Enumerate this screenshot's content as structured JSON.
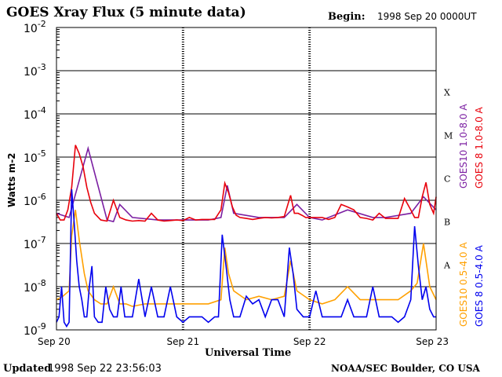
{
  "chart_data": {
    "type": "line",
    "title": "GOES Xray Flux (5 minute data)",
    "begin_label": "Begin:",
    "begin_value": "1998 Sep 20 0000UT",
    "ylabel": "Watts m-2",
    "xlabel": "Universal Time",
    "y_scale": "log",
    "ylim": [
      1e-09,
      0.01
    ],
    "y_ticks": [
      {
        "base": "10",
        "exp": "-2"
      },
      {
        "base": "10",
        "exp": "-3"
      },
      {
        "base": "10",
        "exp": "-4"
      },
      {
        "base": "10",
        "exp": "-5"
      },
      {
        "base": "10",
        "exp": "-6"
      },
      {
        "base": "10",
        "exp": "-7"
      },
      {
        "base": "10",
        "exp": "-8"
      },
      {
        "base": "10",
        "exp": "-9"
      }
    ],
    "x_ticks": [
      "Sep 20",
      "Sep 21",
      "Sep 22",
      "Sep 23"
    ],
    "xlim_days": [
      0,
      3
    ],
    "flare_classes": [
      {
        "label": "X",
        "level": 0.0001
      },
      {
        "label": "M",
        "level": 1e-05
      },
      {
        "label": "C",
        "level": 1e-06
      },
      {
        "label": "B",
        "level": 1e-07
      },
      {
        "label": "A",
        "level": 1e-08
      }
    ],
    "grid": true,
    "legend_position": "right",
    "series": [
      {
        "name": "GOES10 1.0-8.0 A",
        "color": "#7b1fa2",
        "x_days": [
          0.0,
          0.1,
          0.25,
          0.4,
          0.45,
          0.5,
          0.6,
          0.8,
          1.0,
          1.2,
          1.3,
          1.35,
          1.4,
          1.6,
          1.8,
          1.9,
          2.0,
          2.1,
          2.3,
          2.5,
          2.6,
          2.8,
          2.9,
          3.0
        ],
        "values": [
          5e-07,
          4e-07,
          1.6e-05,
          3.5e-07,
          3.2e-07,
          8e-07,
          4e-07,
          3.5e-07,
          3.5e-07,
          3.5e-07,
          4e-07,
          2.2e-06,
          5e-07,
          4e-07,
          4e-07,
          8e-07,
          4e-07,
          3.5e-07,
          6e-07,
          4e-07,
          4e-07,
          5e-07,
          1.2e-06,
          6e-07
        ]
      },
      {
        "name": "GOES 8 1.0-8.0 A",
        "color": "#e8000b",
        "x_days": [
          0.0,
          0.03,
          0.06,
          0.09,
          0.12,
          0.15,
          0.18,
          0.21,
          0.24,
          0.27,
          0.3,
          0.35,
          0.4,
          0.45,
          0.5,
          0.55,
          0.6,
          0.65,
          0.7,
          0.75,
          0.8,
          0.85,
          0.9,
          0.95,
          1.0,
          1.05,
          1.1,
          1.15,
          1.2,
          1.25,
          1.3,
          1.33,
          1.36,
          1.39,
          1.42,
          1.45,
          1.5,
          1.55,
          1.6,
          1.65,
          1.7,
          1.75,
          1.8,
          1.85,
          1.88,
          1.91,
          1.94,
          1.97,
          2.0,
          2.05,
          2.1,
          2.15,
          2.2,
          2.25,
          2.3,
          2.35,
          2.4,
          2.45,
          2.5,
          2.55,
          2.6,
          2.65,
          2.7,
          2.75,
          2.8,
          2.83,
          2.86,
          2.89,
          2.92,
          2.95,
          2.98,
          3.0
        ],
        "values": [
          5e-07,
          3.5e-07,
          3.5e-07,
          6e-07,
          2e-06,
          1.9e-05,
          1.2e-05,
          6e-06,
          2e-06,
          9e-07,
          5e-07,
          3.5e-07,
          3.3e-07,
          1e-06,
          4e-07,
          3.5e-07,
          3.3e-07,
          3.4e-07,
          3.3e-07,
          5e-07,
          3.5e-07,
          3.3e-07,
          3.4e-07,
          3.5e-07,
          3.4e-07,
          4e-07,
          3.5e-07,
          3.6e-07,
          3.6e-07,
          3.6e-07,
          6e-07,
          2.5e-06,
          1.5e-06,
          7e-07,
          4.5e-07,
          4e-07,
          3.8e-07,
          3.6e-07,
          3.8e-07,
          4e-07,
          3.9e-07,
          4e-07,
          4.2e-07,
          1.3e-06,
          5e-07,
          5e-07,
          4.5e-07,
          4e-07,
          4e-07,
          4e-07,
          4e-07,
          3.6e-07,
          4e-07,
          8e-07,
          7e-07,
          6e-07,
          4e-07,
          3.8e-07,
          3.5e-07,
          5e-07,
          3.8e-07,
          3.8e-07,
          3.8e-07,
          1.1e-06,
          6e-07,
          4e-07,
          4e-07,
          1.2e-06,
          2.6e-06,
          8e-07,
          5e-07,
          1.2e-06
        ]
      },
      {
        "name": "GOES10 0.5-4.0 A",
        "color": "#ffa000",
        "x_days": [
          0.0,
          0.05,
          0.1,
          0.12,
          0.15,
          0.18,
          0.22,
          0.25,
          0.3,
          0.35,
          0.4,
          0.45,
          0.5,
          0.55,
          0.6,
          0.7,
          0.8,
          0.9,
          1.0,
          1.1,
          1.2,
          1.3,
          1.33,
          1.36,
          1.4,
          1.5,
          1.6,
          1.7,
          1.8,
          1.85,
          1.9,
          2.0,
          2.1,
          2.2,
          2.3,
          2.4,
          2.5,
          2.6,
          2.7,
          2.8,
          2.85,
          2.9,
          2.95,
          3.0
        ],
        "values": [
          5e-09,
          6e-09,
          8e-09,
          1.5e-07,
          6e-07,
          1.2e-07,
          2e-08,
          8e-09,
          5e-09,
          4e-09,
          4e-09,
          1e-08,
          4e-09,
          4e-09,
          3.5e-09,
          4e-09,
          4e-09,
          4e-09,
          4e-09,
          4e-09,
          4e-09,
          5e-09,
          8e-08,
          2e-08,
          8e-09,
          5e-09,
          6e-09,
          5e-09,
          6e-09,
          4e-08,
          8e-09,
          5e-09,
          4e-09,
          5e-09,
          1e-08,
          5e-09,
          5e-09,
          5e-09,
          5e-09,
          8e-09,
          1.2e-08,
          1e-07,
          1e-08,
          5e-09
        ]
      },
      {
        "name": "GOES 8 0.5-4.0 A",
        "color": "#0000ee",
        "x_days": [
          0.0,
          0.02,
          0.04,
          0.06,
          0.08,
          0.1,
          0.12,
          0.14,
          0.16,
          0.18,
          0.2,
          0.22,
          0.24,
          0.26,
          0.28,
          0.3,
          0.33,
          0.36,
          0.39,
          0.42,
          0.45,
          0.48,
          0.51,
          0.54,
          0.57,
          0.6,
          0.65,
          0.7,
          0.75,
          0.8,
          0.85,
          0.9,
          0.95,
          1.0,
          1.05,
          1.1,
          1.15,
          1.2,
          1.25,
          1.28,
          1.31,
          1.34,
          1.37,
          1.4,
          1.45,
          1.5,
          1.55,
          1.6,
          1.65,
          1.7,
          1.75,
          1.8,
          1.84,
          1.87,
          1.9,
          1.95,
          2.0,
          2.05,
          2.1,
          2.15,
          2.2,
          2.25,
          2.3,
          2.35,
          2.4,
          2.45,
          2.5,
          2.55,
          2.6,
          2.65,
          2.7,
          2.75,
          2.8,
          2.83,
          2.86,
          2.89,
          2.92,
          2.95,
          2.98,
          3.0
        ],
        "values": [
          1.5e-09,
          2e-09,
          1e-08,
          1.5e-09,
          1.2e-09,
          1.5e-09,
          1.8e-06,
          3e-07,
          4e-08,
          1e-08,
          5e-09,
          2e-09,
          2e-09,
          1e-08,
          3e-08,
          2e-09,
          1.5e-09,
          1.5e-09,
          1e-08,
          3e-09,
          2e-09,
          2e-09,
          1e-08,
          2e-09,
          2e-09,
          2e-09,
          1.5e-08,
          2e-09,
          1e-08,
          2e-09,
          2e-09,
          1e-08,
          2e-09,
          1.5e-09,
          2e-09,
          2e-09,
          2e-09,
          1.5e-09,
          2e-09,
          2e-09,
          1.6e-07,
          3e-08,
          5e-09,
          2e-09,
          2e-09,
          6e-09,
          4e-09,
          5e-09,
          2e-09,
          5e-09,
          5e-09,
          2e-09,
          8e-08,
          2e-08,
          3e-09,
          2e-09,
          2e-09,
          8e-09,
          2e-09,
          2e-09,
          2e-09,
          2e-09,
          5e-09,
          2e-09,
          2e-09,
          2e-09,
          1e-08,
          2e-09,
          2e-09,
          2e-09,
          1.5e-09,
          2e-09,
          5e-09,
          2.5e-07,
          3e-08,
          5e-09,
          1e-08,
          3e-09,
          2e-09,
          2e-09
        ]
      }
    ]
  },
  "footer": {
    "updated_label": "Updated",
    "updated_value": "1998 Sep 22 23:56:03",
    "credit": "NOAA/SEC Boulder, CO USA"
  }
}
